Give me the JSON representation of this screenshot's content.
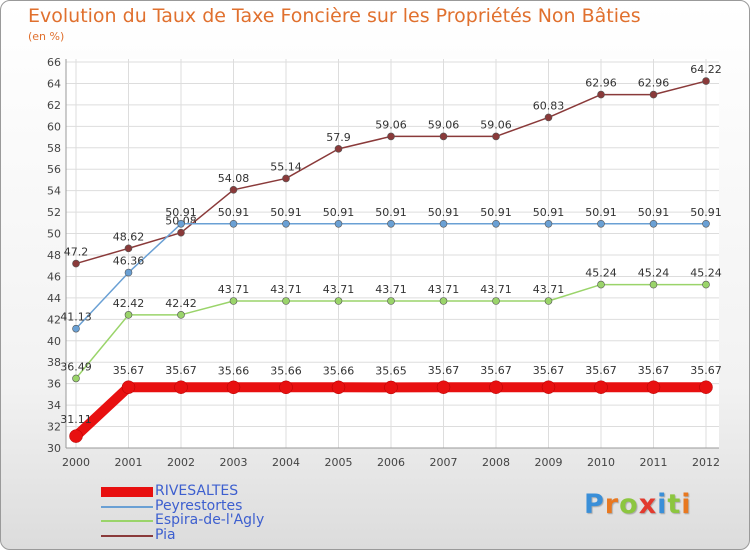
{
  "title": "Evolution du Taux de Taxe Foncière sur les Propriétés Non Bâties",
  "unit": "(en %)",
  "logo": {
    "letters": [
      {
        "ch": "P",
        "color": "#3a8fd8"
      },
      {
        "ch": "r",
        "color": "#e87820"
      },
      {
        "ch": "o",
        "color": "#8cc63f"
      },
      {
        "ch": "x",
        "color": "#e23a2e"
      },
      {
        "ch": "i",
        "color": "#3a8fd8"
      },
      {
        "ch": "t",
        "color": "#8cc63f"
      },
      {
        "ch": "i",
        "color": "#e87820"
      }
    ]
  },
  "chart_data": {
    "type": "line",
    "title": "Evolution du Taux de Taxe Foncière sur les Propriétés Non Bâties",
    "ylabel": "(en %)",
    "xlabel": "",
    "ylim": [
      30,
      66
    ],
    "yticks": [
      30,
      32,
      34,
      36,
      38,
      40,
      42,
      44,
      46,
      48,
      50,
      52,
      54,
      56,
      58,
      60,
      62,
      64,
      66
    ],
    "x": [
      "2000",
      "2001",
      "2002",
      "2003",
      "2004",
      "2005",
      "2006",
      "2007",
      "2008",
      "2009",
      "2010",
      "2011",
      "2012"
    ],
    "series": [
      {
        "name": "RIVESALTES",
        "color": "#e81010",
        "values": [
          31.11,
          35.67,
          35.67,
          35.66,
          35.66,
          35.66,
          35.65,
          35.67,
          35.67,
          35.67,
          35.67,
          35.67,
          35.67
        ],
        "labels": [
          "31.11",
          "35.67",
          "35.67",
          "35.66",
          "35.66",
          "35.66",
          "35.65",
          "35.67",
          "35.67",
          "35.67",
          "35.67",
          "35.67",
          "35.67"
        ]
      },
      {
        "name": "Peyrestortes",
        "color": "#6aa0d4",
        "values": [
          41.13,
          46.36,
          50.91,
          50.91,
          50.91,
          50.91,
          50.91,
          50.91,
          50.91,
          50.91,
          50.91,
          50.91,
          50.91
        ],
        "labels": [
          "41.13",
          "46.36",
          "50.91",
          "50.91",
          "50.91",
          "50.91",
          "50.91",
          "50.91",
          "50.91",
          "50.91",
          "50.91",
          "50.91",
          "50.91"
        ]
      },
      {
        "name": "Espira-de-l'Agly",
        "color": "#9ad46a",
        "values": [
          36.49,
          42.42,
          42.42,
          43.71,
          43.71,
          43.71,
          43.71,
          43.71,
          43.71,
          43.71,
          45.24,
          45.24,
          45.24
        ],
        "labels": [
          "36.49",
          "42.42",
          "42.42",
          "43.71",
          "43.71",
          "43.71",
          "43.71",
          "43.71",
          "43.71",
          "43.71",
          "45.24",
          "45.24",
          "45.24"
        ]
      },
      {
        "name": "Pia",
        "color": "#8a3a3a",
        "values": [
          47.2,
          48.62,
          50.08,
          54.08,
          55.14,
          57.9,
          59.06,
          59.06,
          59.06,
          60.83,
          62.96,
          62.96,
          64.22
        ],
        "labels": [
          "47.2",
          "48.62",
          "50.08",
          "54.08",
          "55.14",
          "57.9",
          "59.06",
          "59.06",
          "59.06",
          "60.83",
          "62.96",
          "62.96",
          "64.22"
        ]
      }
    ],
    "legend_position": "bottom-left",
    "grid": true
  }
}
